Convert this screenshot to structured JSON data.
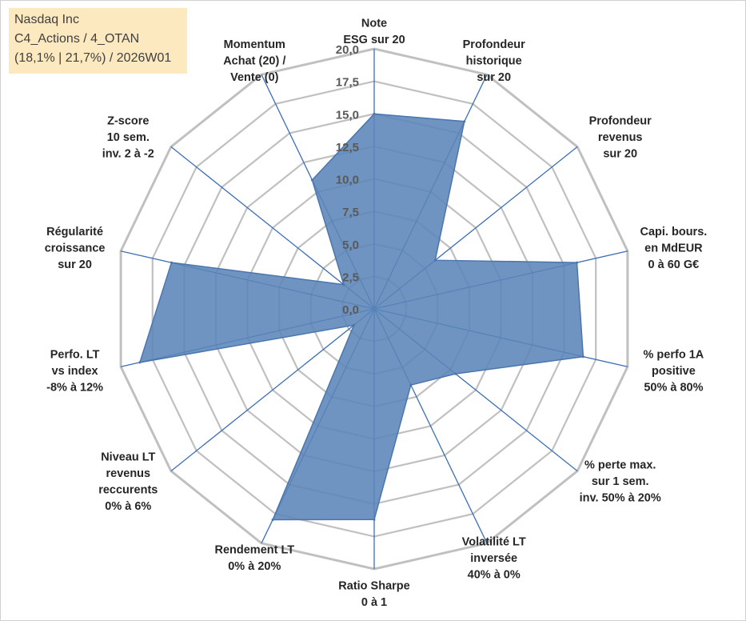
{
  "info": {
    "line1": "Nasdaq Inc",
    "line2": "C4_Actions / 4_OTAN",
    "line3": "(18,1% | 21,7%) / 2026W01"
  },
  "colors": {
    "fill": "#5b85b8",
    "stroke": "#4a76ad",
    "axis": "#3d6fb5",
    "grid": "#c0c0c0",
    "info_bg": "#fde9c0"
  },
  "chart_data": {
    "type": "radar",
    "title": "",
    "range": [
      0,
      20
    ],
    "ticks": [
      "0,0",
      "2,5",
      "5,0",
      "7,5",
      "10,0",
      "12,5",
      "15,0",
      "17,5",
      "20,0"
    ],
    "axes": [
      {
        "label": [
          "Note",
          "ESG sur 20"
        ],
        "value": 15.0
      },
      {
        "label": [
          "Profondeur",
          "historique",
          "sur 20"
        ],
        "value": 16.0
      },
      {
        "label": [
          "Profondeur",
          "revenus",
          "sur 20"
        ],
        "value": 6.0
      },
      {
        "label": [
          "Capi. bours.",
          "en MdEUR",
          "0 à 60 G€"
        ],
        "value": 16.0
      },
      {
        "label": [
          "% perfo 1A",
          "positive",
          "50% à 80%"
        ],
        "value": 16.5
      },
      {
        "label": [
          "% perte max.",
          "sur 1 sem.",
          "inv. 50% à 20%"
        ],
        "value": 8.0
      },
      {
        "label": [
          "Volatilité LT",
          "inversée",
          "40% à 0%"
        ],
        "value": 6.5
      },
      {
        "label": [
          "Ratio Sharpe",
          "0 à 1"
        ],
        "value": 16.2
      },
      {
        "label": [
          "Rendement LT",
          "0% à 20%"
        ],
        "value": 18.0
      },
      {
        "label": [
          "Niveau LT",
          "revenus",
          "reccurents",
          "0% à 6%"
        ],
        "value": 2.0
      },
      {
        "label": [
          "Perfo. LT",
          "vs index",
          "-8% à 12%"
        ],
        "value": 18.5
      },
      {
        "label": [
          "Régularité",
          "croissance",
          "sur 20"
        ],
        "value": 16.0
      },
      {
        "label": [
          "Z-score",
          "10 sem.",
          "inv. 2 à -2"
        ],
        "value": 3.0
      },
      {
        "label": [
          "Momentum",
          "Achat (20) /",
          "Vente (0)"
        ],
        "value": 11.0
      }
    ]
  }
}
